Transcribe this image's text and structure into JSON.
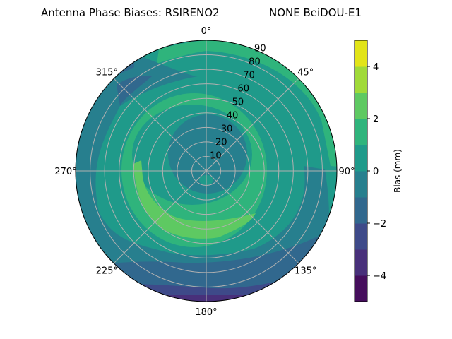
{
  "chart_data": {
    "type": "polar-contour",
    "title_left": "Antenna Phase Biases: RSIRENO2",
    "title_right": "NONE BeiDOU-E1",
    "angular_ticks": [
      "0°",
      "45°",
      "90°",
      "135°",
      "180°",
      "225°",
      "270°",
      "315°"
    ],
    "radial_ticks": [
      "10",
      "20",
      "30",
      "40",
      "50",
      "60",
      "70",
      "80",
      "90"
    ],
    "radial_range": [
      0,
      90
    ],
    "angular_direction": "clockwise",
    "angular_zero": "top",
    "grid": true,
    "colorbar": {
      "label": "Bias (mm)",
      "range": [
        -5,
        5
      ],
      "levels": [
        -5,
        -4,
        -3,
        -2,
        -1,
        0,
        1,
        2,
        3,
        4,
        5
      ],
      "tick_values": [
        -4,
        -2,
        0,
        2,
        4
      ],
      "tick_labels": [
        "−4",
        "−2",
        "0",
        "2",
        "4"
      ],
      "colormap": "viridis",
      "band_colors": [
        "#450e5c",
        "#48307a",
        "#3e4a89",
        "#31688e",
        "#277f8e",
        "#1f9a8a",
        "#2fb47c",
        "#5ec962",
        "#a0da39",
        "#e2e418"
      ]
    },
    "observed_features": [
      "center region (elevation < ~35) in -1..0 band",
      "ring between ~45 and ~60 in 1..2 band",
      "crescent 2..3 band from ~220° to ~140° around 55-65",
      "outer rim toward 180° down to -4..-3 band"
    ]
  }
}
